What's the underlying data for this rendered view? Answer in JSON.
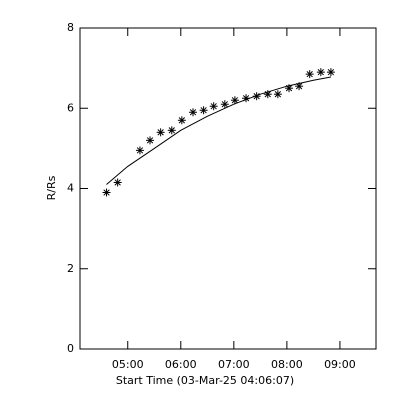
{
  "chart_data": {
    "type": "scatter",
    "x_label": "Start Time (03-Mar-25 04:06:07)",
    "y_label": "R/Rs",
    "xlim": [
      4.1,
      9.68
    ],
    "ylim": [
      0,
      8
    ],
    "xticks": [
      {
        "value": 5,
        "label": "05:00"
      },
      {
        "value": 6,
        "label": "06:00"
      },
      {
        "value": 7,
        "label": "07:00"
      },
      {
        "value": 8,
        "label": "08:00"
      },
      {
        "value": 9,
        "label": "09:00"
      }
    ],
    "yticks": [
      0,
      2,
      4,
      6,
      8
    ],
    "color": "#000000",
    "x": [
      4.6,
      4.81,
      5.23,
      5.42,
      5.62,
      5.83,
      6.02,
      6.23,
      6.43,
      6.62,
      6.83,
      7.02,
      7.23,
      7.43,
      7.64,
      7.83,
      8.04,
      8.23,
      8.43,
      8.64,
      8.83
    ],
    "values": [
      3.9,
      4.15,
      4.95,
      5.2,
      5.4,
      5.45,
      5.7,
      5.9,
      5.95,
      6.05,
      6.1,
      6.2,
      6.25,
      6.3,
      6.35,
      6.35,
      6.5,
      6.55,
      6.85,
      6.9,
      6.9
    ],
    "fit": {
      "x": [
        4.6,
        5.0,
        5.5,
        6.0,
        6.5,
        7.0,
        7.5,
        8.0,
        8.5,
        8.83
      ],
      "values": [
        4.1,
        4.55,
        5.0,
        5.45,
        5.8,
        6.1,
        6.35,
        6.55,
        6.7,
        6.78
      ]
    }
  }
}
